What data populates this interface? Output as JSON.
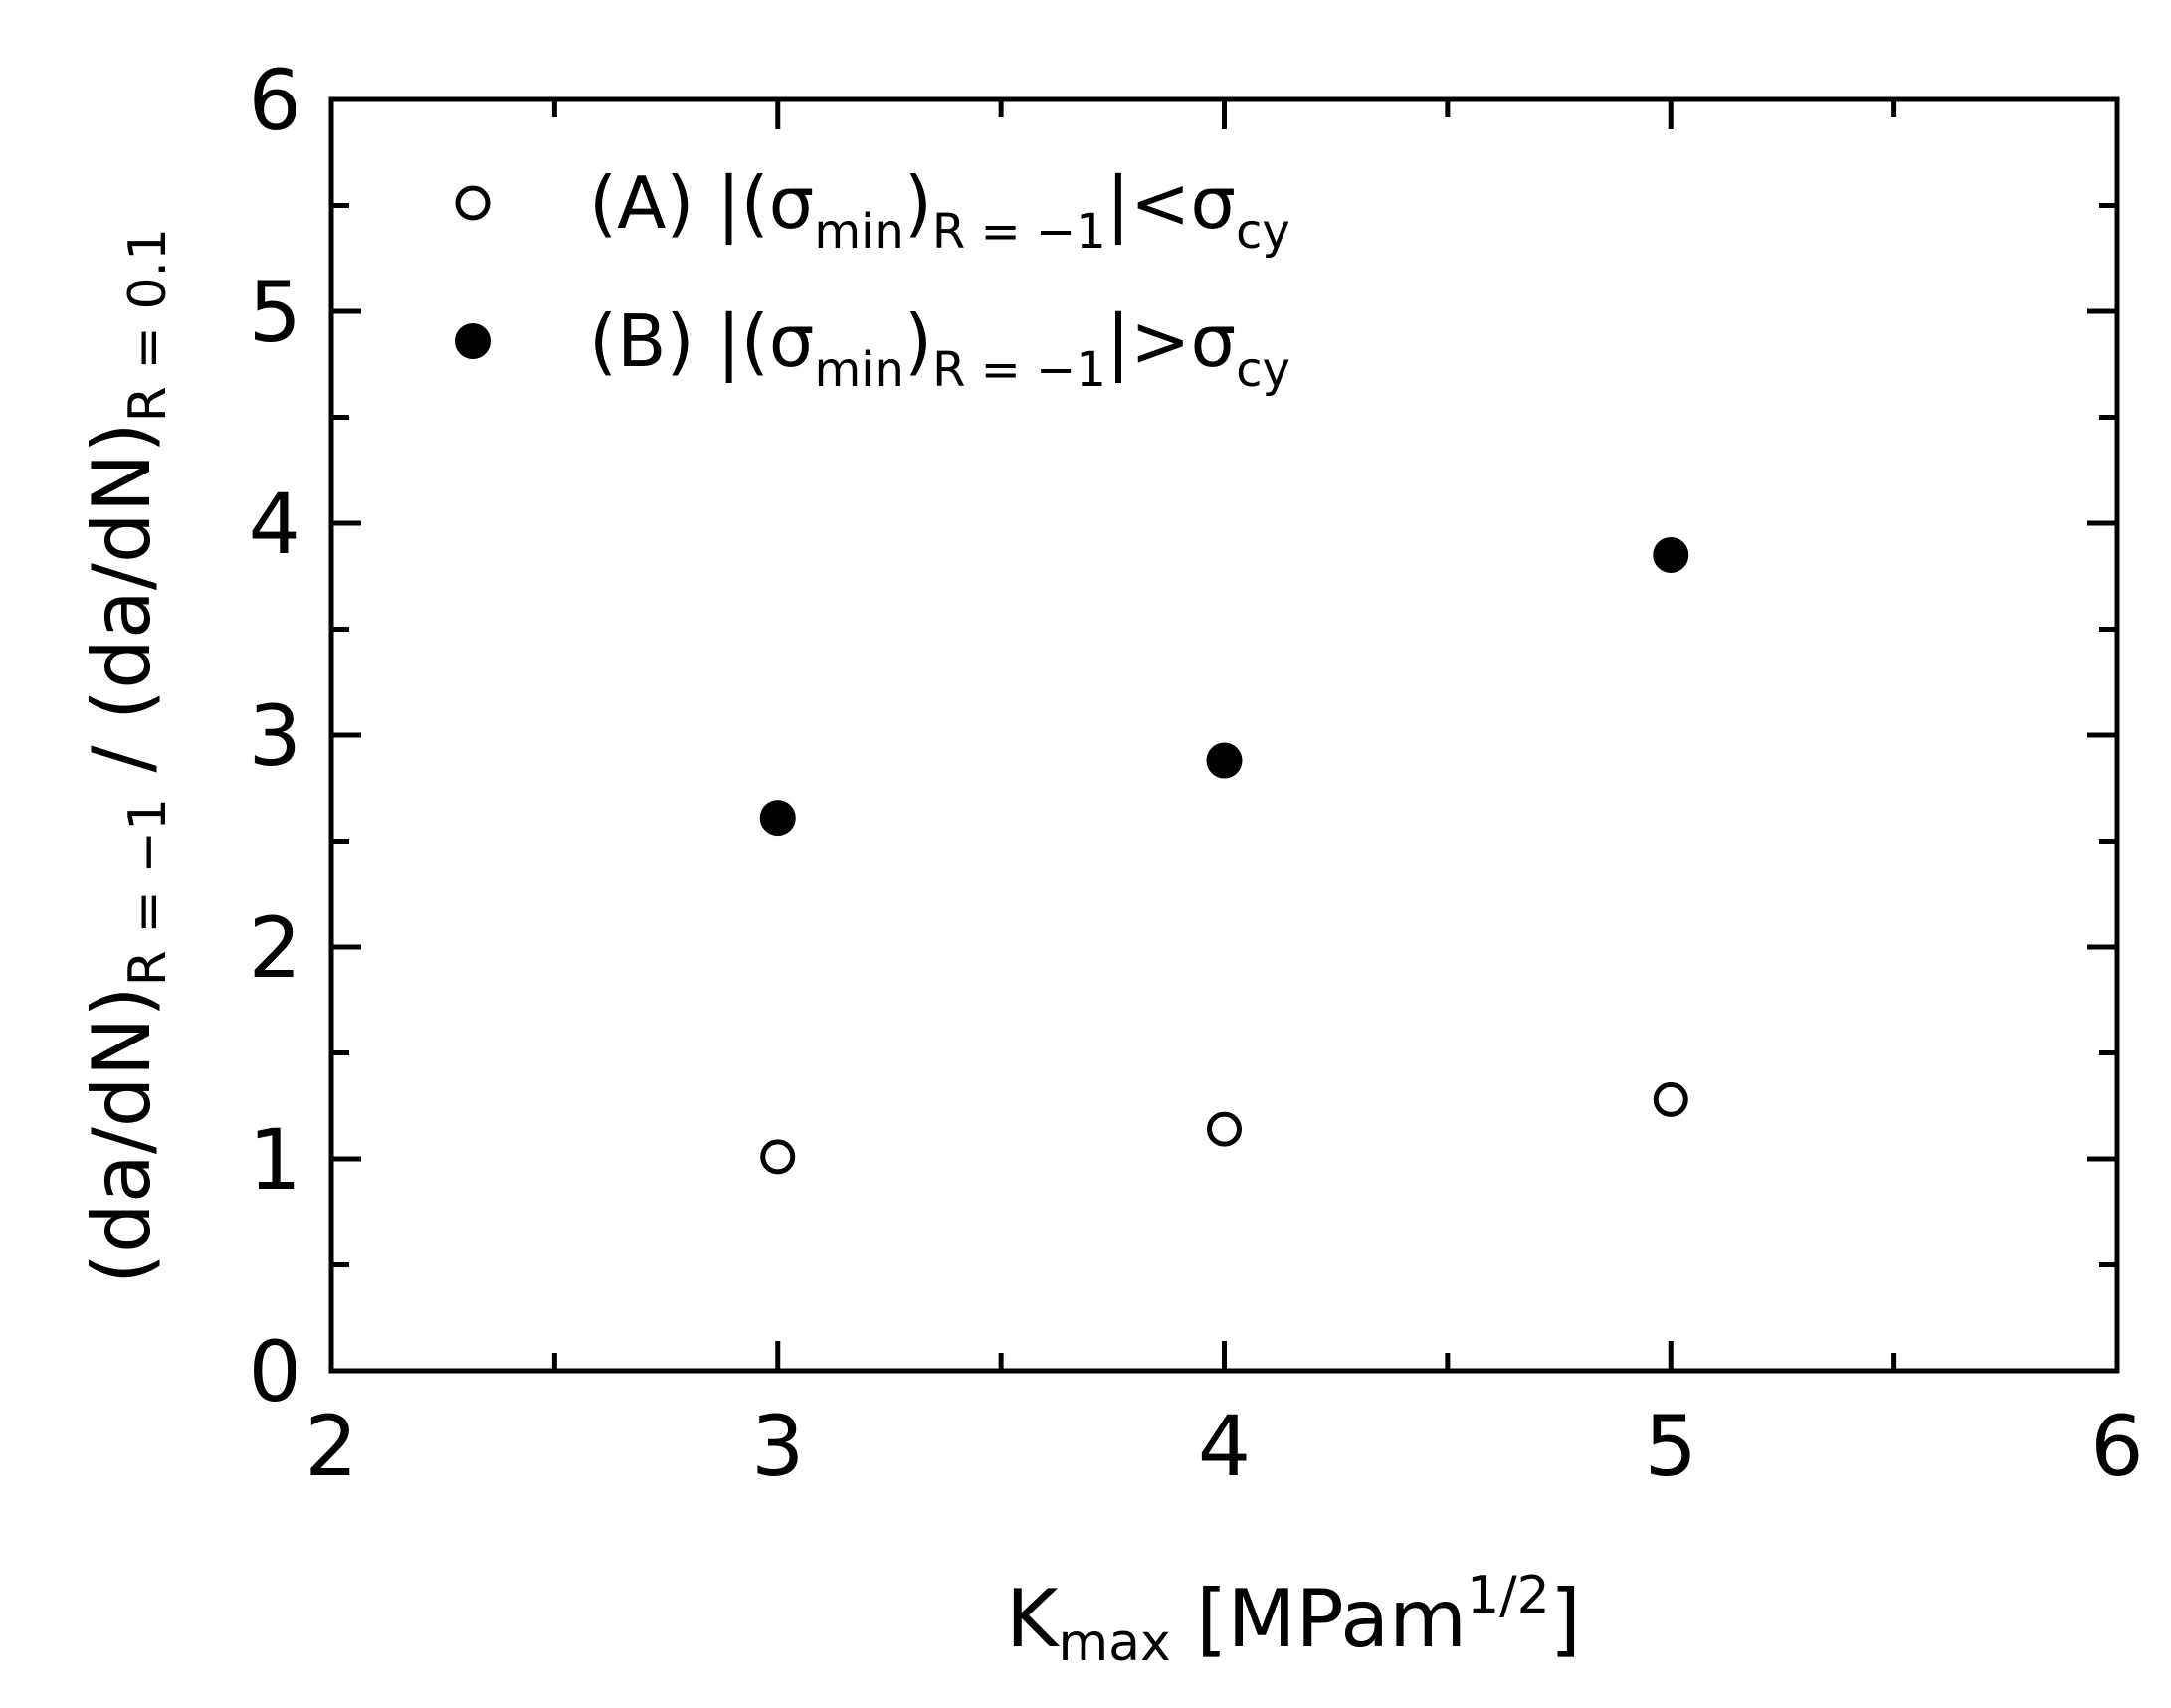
{
  "chart_data": {
    "type": "scatter",
    "title": "",
    "xlabel": {
      "main": "K",
      "sub": "max",
      "rest": " [MPam",
      "sup": "1/2",
      "close": "]"
    },
    "ylabel": {
      "p1": "(da/dN)",
      "s1": "R = −1",
      "p2": " / (da/dN)",
      "s2": "R = 0.1"
    },
    "xlim": [
      2,
      6
    ],
    "ylim": [
      0,
      6
    ],
    "xticks": [
      2,
      3,
      4,
      5,
      6
    ],
    "xtick_labels": [
      "2",
      "3",
      "4",
      "5",
      "6"
    ],
    "yticks": [
      0,
      1,
      2,
      3,
      4,
      5,
      6
    ],
    "ytick_labels": [
      "0",
      "1",
      "2",
      "3",
      "4",
      "5",
      "6"
    ],
    "x_minor_step": 0.5,
    "y_minor_step": 0.5,
    "grid": false,
    "legend_position": "top-left",
    "series": [
      {
        "name": "(A) |(σmin)R = −1|<σcy",
        "marker": "open-circle",
        "legend": {
          "pre": "(A) |(σ",
          "s1": "min",
          "mid": ")",
          "s2": "R = −1",
          "rel": "|<σ",
          "s3": "cy"
        },
        "x": [
          3,
          4,
          5
        ],
        "y": [
          1.01,
          1.14,
          1.28
        ]
      },
      {
        "name": "(B) |(σmin)R = −1|>σcy",
        "marker": "filled-circle",
        "legend": {
          "pre": "(B) |(σ",
          "s1": "min",
          "mid": ")",
          "s2": "R = −1",
          "rel": "|>σ",
          "s3": "cy"
        },
        "x": [
          3,
          4,
          5
        ],
        "y": [
          2.61,
          2.88,
          3.85
        ]
      }
    ],
    "colors": {
      "marker": "#000000",
      "axis": "#000000"
    }
  }
}
